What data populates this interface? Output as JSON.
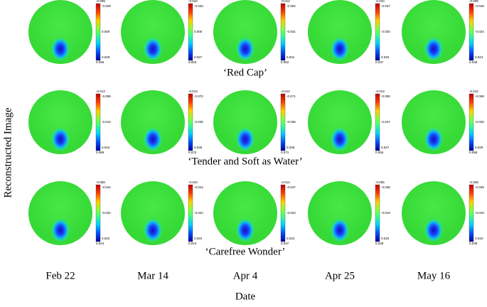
{
  "y_axis_label": "Reconstructed Image",
  "x_axis_label": "Date",
  "dates": [
    "Feb 22",
    "Mar 14",
    "Apr 4",
    "Apr 25",
    "May 16"
  ],
  "rows": [
    {
      "caption": "‘Red Cap’",
      "colorbars": [
        [
          "-0.009",
          "-0.028",
          "0.000",
          "0.028",
          "0.056"
        ],
        [
          "-0.010",
          "-0.033",
          "0.000",
          "0.027",
          "0.053"
        ],
        [
          "-0.012",
          "-0.062",
          "-0.031",
          "0.031",
          "0.062"
        ],
        [
          "-0.010",
          "-0.037",
          "-0.020",
          "0.020",
          "0.037"
        ],
        [
          "-0.009",
          "-0.048",
          "-0.024",
          "0.024",
          "0.048"
        ]
      ]
    },
    {
      "caption": "‘Tender and Soft as Water’",
      "colorbars": [
        [
          "-0.013",
          "-0.089",
          "-0.044",
          "0.044",
          "0.089"
        ],
        [
          "-0.013",
          "-0.070",
          "-0.035",
          "0.035",
          "0.070"
        ],
        [
          "-0.012",
          "-0.071",
          "-0.036",
          "0.036",
          "0.071"
        ],
        [
          "-0.013",
          "-0.055",
          "-0.027",
          "0.027",
          "0.055"
        ],
        [
          "-0.012",
          "-0.058",
          "-0.029",
          "0.029",
          "0.058"
        ]
      ]
    },
    {
      "caption": "‘Carefree Wonder’",
      "colorbars": [
        [
          "-0.008",
          "-0.044",
          "-0.022",
          "0.022",
          "0.044"
        ],
        [
          "-0.010",
          "-0.044",
          "-0.022",
          "0.022",
          "0.044"
        ],
        [
          "-0.012",
          "-0.047",
          "-0.023",
          "0.023",
          "0.047"
        ],
        [
          "-0.006",
          "-0.038",
          "-0.019",
          "0.019",
          "0.038"
        ],
        [
          "-0.008",
          "-0.039",
          "-0.019",
          "0.019",
          "0.039"
        ]
      ]
    }
  ]
}
